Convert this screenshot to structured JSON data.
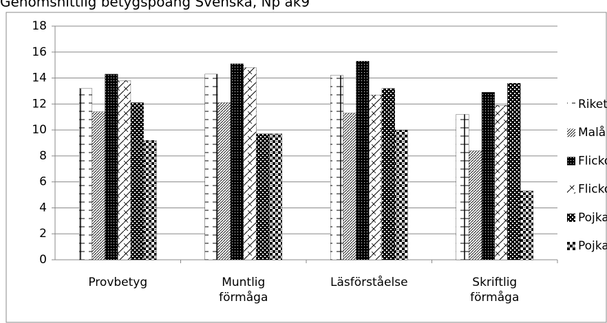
{
  "chart_data": {
    "type": "bar",
    "title": "Genomsnittlig betygspoäng Svenska, Np åk9",
    "categories": [
      "Provbetyg",
      "Muntlig förmåga",
      "Läsförståelse",
      "Skriftlig förmåga"
    ],
    "series": [
      {
        "name": "Riket",
        "color": "#000000",
        "values": [
          13.2,
          14.3,
          14.2,
          11.2
        ]
      },
      {
        "name": "Malå",
        "color": "#000000",
        "values": [
          11.4,
          12.1,
          11.3,
          8.4
        ]
      },
      {
        "name": "Flickor Riket",
        "color": "#000000",
        "values": [
          14.3,
          15.1,
          15.3,
          12.9
        ]
      },
      {
        "name": "Flickor Malå",
        "color": "#000000",
        "values": [
          13.8,
          14.8,
          12.7,
          11.9
        ]
      },
      {
        "name": "Pojkar Riket",
        "color": "#000000",
        "values": [
          12.1,
          9.7,
          13.2,
          13.6
        ]
      },
      {
        "name": "Pojkar Malå",
        "color": "#000000",
        "values": [
          9.2,
          9.7,
          10.0,
          5.3
        ]
      }
    ],
    "ylim": [
      0,
      18
    ],
    "yticks": [
      0,
      2,
      4,
      6,
      8,
      10,
      12,
      14,
      16,
      18
    ],
    "grid": true,
    "legend": "right"
  }
}
